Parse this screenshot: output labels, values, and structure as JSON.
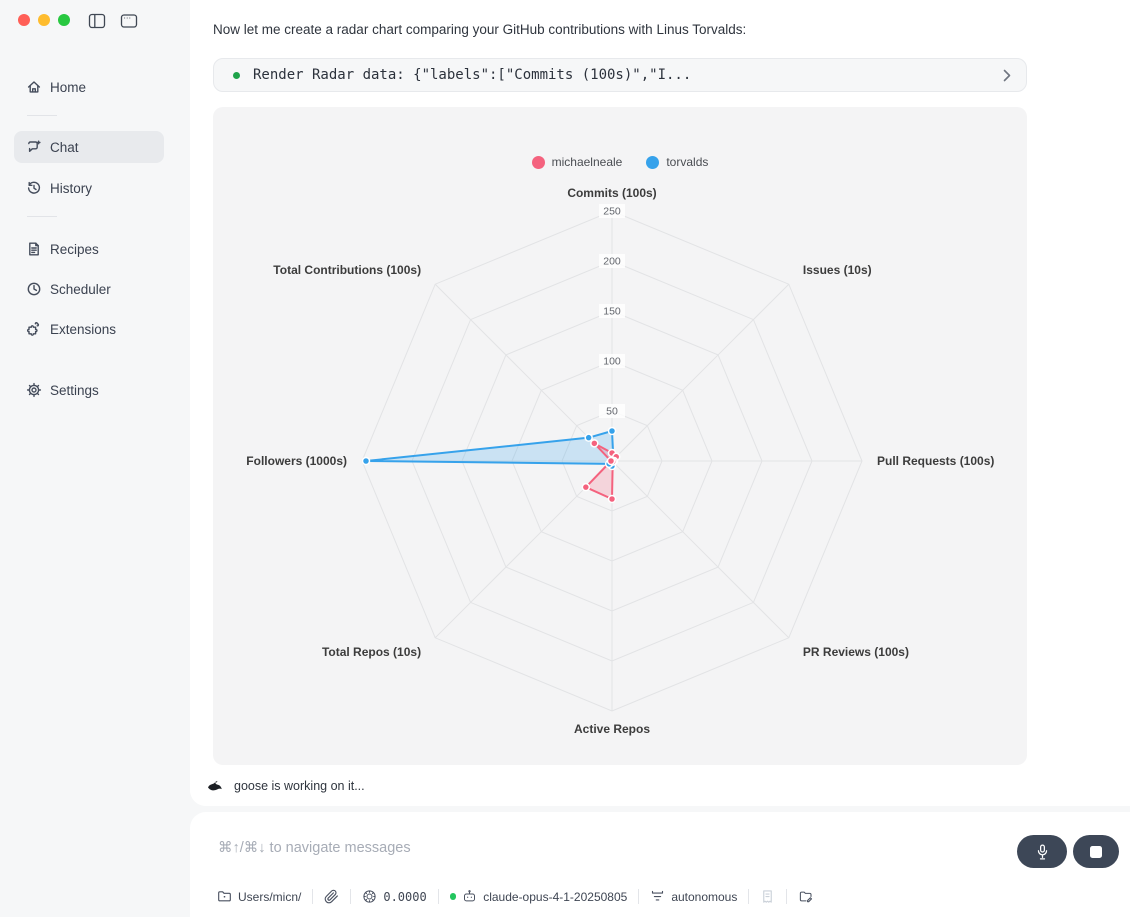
{
  "window_controls": {
    "close_color": "#ff5f57",
    "minimize_color": "#febc2e",
    "zoom_color": "#28c840"
  },
  "icons": [
    "close",
    "minimize",
    "zoom",
    "sidebar-toggle",
    "new-window",
    "home",
    "chat",
    "history",
    "recipes",
    "scheduler",
    "extensions",
    "settings",
    "chevron-right",
    "goose",
    "microphone",
    "stop",
    "folder",
    "paperclip",
    "token-coin",
    "bot",
    "filter",
    "receipt",
    "folder-edit"
  ],
  "sidebar": {
    "items": [
      {
        "label": "Home"
      },
      {
        "label": "Chat",
        "selected": true
      },
      {
        "label": "History"
      },
      {
        "label": "Recipes"
      },
      {
        "label": "Scheduler"
      },
      {
        "label": "Extensions"
      },
      {
        "label": "Settings"
      }
    ]
  },
  "chat": {
    "assistant_message": "Now let me create a radar chart comparing your GitHub contributions with Linus Torvalds:",
    "tool_call_text": "Render Radar data: {\"labels\":[\"Commits (100s)\",\"I..."
  },
  "status": {
    "text": "goose is working on it..."
  },
  "composer": {
    "placeholder": "⌘↑/⌘↓ to navigate messages"
  },
  "footer": {
    "working_dir": "Users/micn/",
    "token_cost": "0.0000",
    "model": "claude-opus-4-1-20250805",
    "mode": "autonomous",
    "accent_green": "#22c55e"
  },
  "chart_data": {
    "type": "radar",
    "categories": [
      "Commits (100s)",
      "Issues (10s)",
      "Pull Requests (100s)",
      "PR Reviews (100s)",
      "Active Repos",
      "Total Repos (10s)",
      "Followers (1000s)",
      "Total Contributions (100s)"
    ],
    "series": [
      {
        "name": "michaelneale",
        "color": "#F4627E",
        "values": [
          8,
          6,
          2,
          1,
          38,
          37,
          1,
          25
        ]
      },
      {
        "name": "torvalds",
        "color": "#36A2EB",
        "values": [
          30,
          2,
          1,
          1,
          5,
          4,
          246,
          33
        ]
      }
    ],
    "ticks": [
      50,
      100,
      150,
      200,
      250
    ],
    "rmax": 250,
    "grid": "polygon",
    "legend_position": "top"
  }
}
